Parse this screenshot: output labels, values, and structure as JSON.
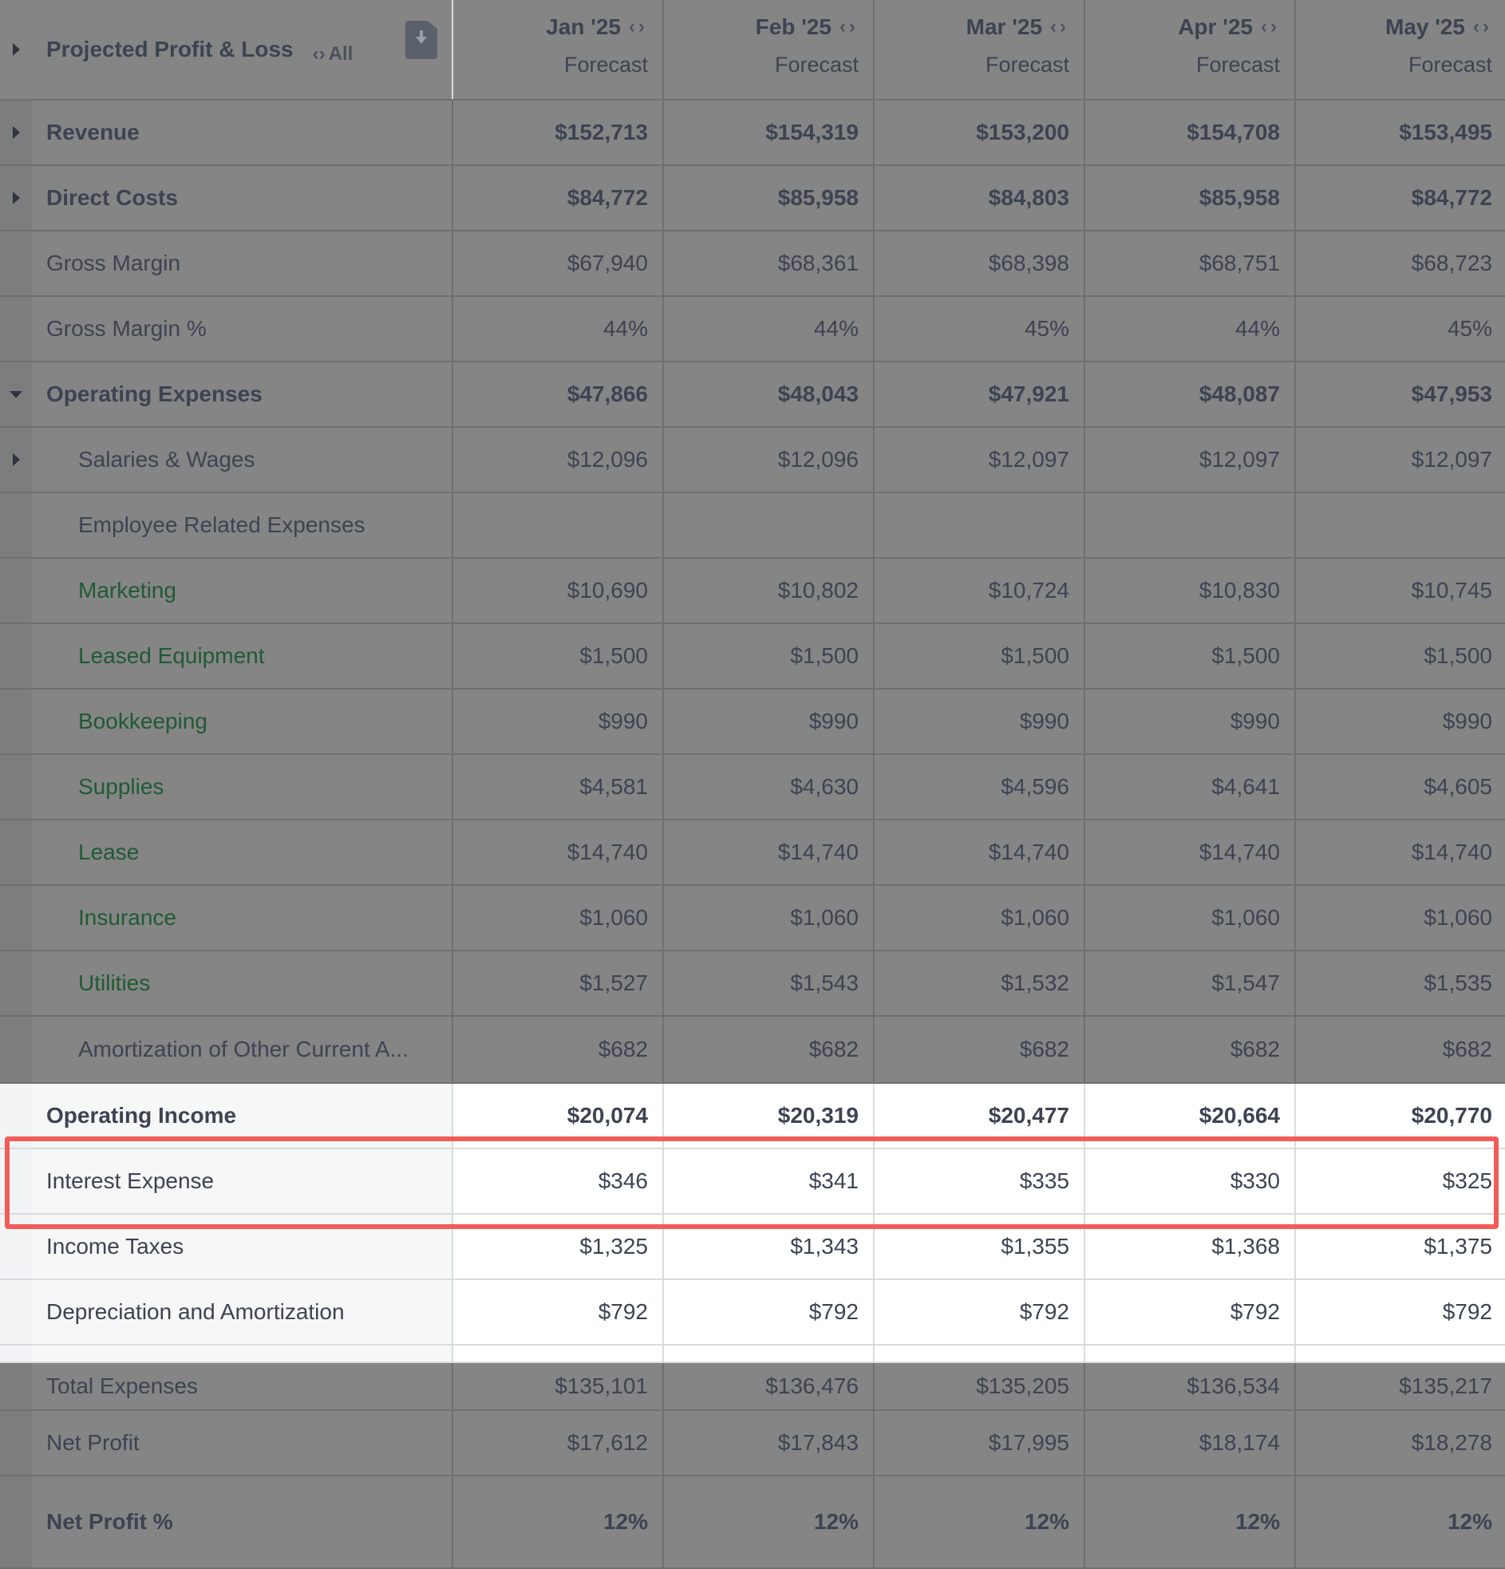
{
  "header": {
    "title": "Projected Profit & Loss",
    "all_link": "All",
    "export_icon": "document-download-icon",
    "months": [
      {
        "label": "Jan '25",
        "sub": "Forecast"
      },
      {
        "label": "Feb '25",
        "sub": "Forecast"
      },
      {
        "label": "Mar '25",
        "sub": "Forecast"
      },
      {
        "label": "Apr '25",
        "sub": "Forecast"
      },
      {
        "label": "May '25",
        "sub": "Forecast"
      }
    ]
  },
  "rows": [
    {
      "label": "Revenue",
      "values": [
        "$152,713",
        "$154,319",
        "$153,200",
        "$154,708",
        "$153,495"
      ]
    },
    {
      "label": "Direct Costs",
      "values": [
        "$84,772",
        "$85,958",
        "$84,803",
        "$85,958",
        "$84,772"
      ]
    },
    {
      "label": "Gross Margin",
      "values": [
        "$67,940",
        "$68,361",
        "$68,398",
        "$68,751",
        "$68,723"
      ]
    },
    {
      "label": "Gross Margin %",
      "values": [
        "44%",
        "44%",
        "45%",
        "44%",
        "45%"
      ]
    },
    {
      "label": "Operating Expenses",
      "values": [
        "$47,866",
        "$48,043",
        "$47,921",
        "$48,087",
        "$47,953"
      ]
    },
    {
      "label": "Salaries & Wages",
      "values": [
        "$12,096",
        "$12,096",
        "$12,097",
        "$12,097",
        "$12,097"
      ]
    },
    {
      "label": "Employee Related Expenses",
      "values": [
        "",
        "",
        "",
        "",
        ""
      ]
    },
    {
      "label": "Marketing",
      "values": [
        "$10,690",
        "$10,802",
        "$10,724",
        "$10,830",
        "$10,745"
      ]
    },
    {
      "label": "Leased Equipment",
      "values": [
        "$1,500",
        "$1,500",
        "$1,500",
        "$1,500",
        "$1,500"
      ]
    },
    {
      "label": "Bookkeeping",
      "values": [
        "$990",
        "$990",
        "$990",
        "$990",
        "$990"
      ]
    },
    {
      "label": "Supplies",
      "values": [
        "$4,581",
        "$4,630",
        "$4,596",
        "$4,641",
        "$4,605"
      ]
    },
    {
      "label": "Lease",
      "values": [
        "$14,740",
        "$14,740",
        "$14,740",
        "$14,740",
        "$14,740"
      ]
    },
    {
      "label": "Insurance",
      "values": [
        "$1,060",
        "$1,060",
        "$1,060",
        "$1,060",
        "$1,060"
      ]
    },
    {
      "label": "Utilities",
      "values": [
        "$1,527",
        "$1,543",
        "$1,532",
        "$1,547",
        "$1,535"
      ]
    },
    {
      "label": "Amortization of Other Current A...",
      "values": [
        "$682",
        "$682",
        "$682",
        "$682",
        "$682"
      ]
    },
    {
      "label": "Operating Income",
      "values": [
        "$20,074",
        "$20,319",
        "$20,477",
        "$20,664",
        "$20,770"
      ]
    },
    {
      "label": "Interest Expense",
      "values": [
        "$346",
        "$341",
        "$335",
        "$330",
        "$325"
      ]
    },
    {
      "label": "Income Taxes",
      "values": [
        "$1,325",
        "$1,343",
        "$1,355",
        "$1,368",
        "$1,375"
      ]
    },
    {
      "label": "Depreciation and Amortization",
      "values": [
        "$792",
        "$792",
        "$792",
        "$792",
        "$792"
      ]
    },
    {
      "label": "Total Expenses",
      "values": [
        "$135,101",
        "$136,476",
        "$135,205",
        "$136,534",
        "$135,217"
      ]
    },
    {
      "label": "Net Profit",
      "values": [
        "$17,612",
        "$17,843",
        "$17,995",
        "$18,174",
        "$18,278"
      ]
    },
    {
      "label": "Net Profit %",
      "values": [
        "12%",
        "12%",
        "12%",
        "12%",
        "12%"
      ]
    }
  ],
  "colors": {
    "overlay": "#858585",
    "highlight": "#f25c58",
    "green_text": "#1f5a34"
  }
}
